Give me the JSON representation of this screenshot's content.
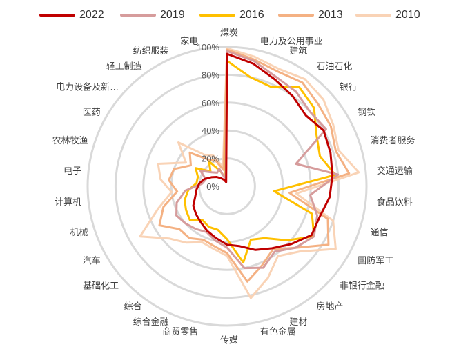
{
  "chart_data": {
    "type": "radar",
    "categories": [
      "煤炭",
      "电力及公用事业",
      "建筑",
      "石油石化",
      "银行",
      "钢铁",
      "消费者服务",
      "交通运输",
      "食品饮料",
      "通信",
      "国防军工",
      "非银行金融",
      "房地产",
      "建材",
      "有色金属",
      "传媒",
      "商贸零售",
      "综合金融",
      "综合",
      "基础化工",
      "汽车",
      "机械",
      "计算机",
      "电子",
      "农林牧渔",
      "医药",
      "电力设备及新…",
      "轻工制造",
      "纺织服装",
      "家电"
    ],
    "series": [
      {
        "name": "2022",
        "color": "#c00000",
        "values": [
          95,
          90,
          84,
          80,
          76,
          80,
          78,
          76,
          74,
          70,
          70,
          62,
          55,
          50,
          44,
          42,
          38,
          35,
          32,
          30,
          28,
          24,
          22,
          20,
          17,
          13,
          10,
          7,
          5,
          3
        ]
      },
      {
        "name": "2019",
        "color": "#d69c9c",
        "values": [
          97,
          92,
          86,
          84,
          80,
          82,
          52,
          80,
          60,
          68,
          72,
          66,
          58,
          64,
          60,
          44,
          40,
          36,
          38,
          40,
          42,
          38,
          30,
          18,
          16,
          22,
          15,
          12,
          14,
          5
        ]
      },
      {
        "name": "2016",
        "color": "#ffc000",
        "values": [
          90,
          80,
          78,
          88,
          84,
          74,
          70,
          78,
          34,
          64,
          72,
          58,
          46,
          42,
          56,
          38,
          32,
          32,
          30,
          36,
          34,
          32,
          28,
          22,
          22,
          26,
          16,
          22,
          12,
          6
        ]
      },
      {
        "name": "2013",
        "color": "#f4b183",
        "values": [
          98,
          93,
          90,
          92,
          88,
          86,
          82,
          88,
          45,
          76,
          84,
          66,
          56,
          62,
          70,
          48,
          44,
          42,
          46,
          46,
          56,
          48,
          36,
          42,
          40,
          30,
          36,
          24,
          20,
          12
        ]
      },
      {
        "name": "2010",
        "color": "#f9d3b6",
        "values": [
          99,
          95,
          92,
          95,
          93,
          88,
          84,
          95,
          50,
          80,
          90,
          70,
          62,
          72,
          82,
          50,
          46,
          44,
          50,
          56,
          72,
          52,
          40,
          48,
          52,
          34,
          47,
          28,
          24,
          14
        ]
      }
    ],
    "rlim": [
      0,
      100
    ],
    "radial_ticks": [
      0,
      20,
      40,
      60,
      80,
      100
    ],
    "radial_tick_labels": [
      "0%",
      "20%",
      "40%",
      "60%",
      "80%",
      "100%"
    ],
    "grid": true,
    "grid_color": "#d9d9d9",
    "legend_position": "top"
  }
}
